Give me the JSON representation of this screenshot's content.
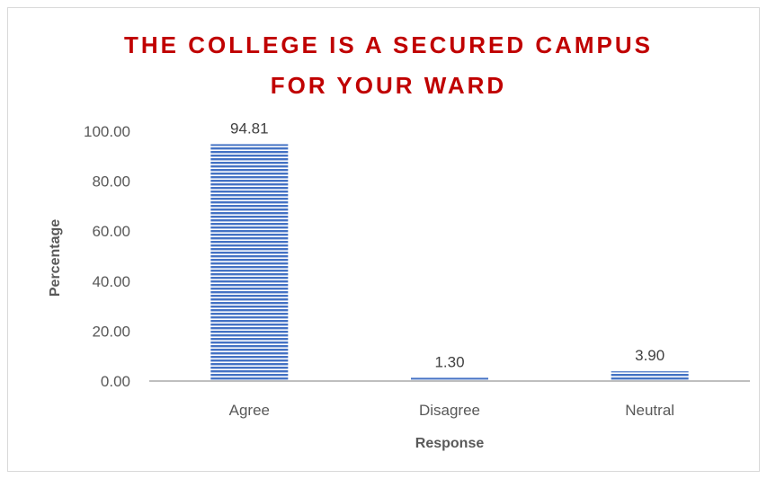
{
  "chart_data": {
    "type": "bar",
    "title_lines": [
      "THE COLLEGE  IS A SECURED CAMPUS",
      "FOR YOUR WARD"
    ],
    "categories": [
      "Agree",
      "Disagree",
      "Neutral"
    ],
    "values": [
      94.81,
      1.3,
      3.9
    ],
    "data_labels": [
      "94.81",
      "1.30",
      "3.90"
    ],
    "xlabel": "Response",
    "ylabel": "Percentage",
    "yticks": [
      "0.00",
      "20.00",
      "40.00",
      "60.00",
      "80.00",
      "100.00"
    ],
    "ylim": [
      0,
      100
    ],
    "grid": false,
    "legend": "none",
    "bar_color": "#4472c4",
    "title_color": "#c00000"
  }
}
